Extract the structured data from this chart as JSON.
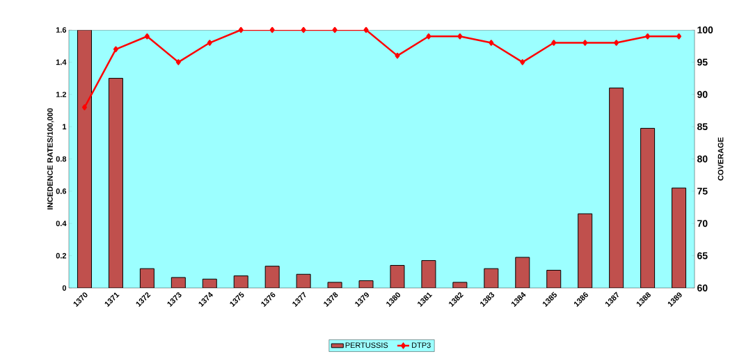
{
  "chart_data": {
    "type": "bar",
    "ylabel": "INCEDENCE RATES/100,000",
    "y2label": "COVERAGE",
    "categories": [
      "1370",
      "1371",
      "1372",
      "1373",
      "1374",
      "1375",
      "1376",
      "1377",
      "1378",
      "1379",
      "1380",
      "1381",
      "1382",
      "1383",
      "1384",
      "1385",
      "1386",
      "1387",
      "1388",
      "1389"
    ],
    "series": [
      {
        "name": "PERTUSSIS",
        "color": "#c0504d",
        "values": [
          1.6,
          1.3,
          0.12,
          0.065,
          0.055,
          0.075,
          0.135,
          0.085,
          0.035,
          0.045,
          0.14,
          0.17,
          0.035,
          0.12,
          0.19,
          0.11,
          0.46,
          1.24,
          0.99,
          0.62
        ]
      },
      {
        "name": "DTP3",
        "type": "line",
        "axis": "y2",
        "color": "#ff0000",
        "marker": "diamond",
        "values": [
          88,
          97,
          99,
          95,
          98,
          100,
          100,
          100,
          100,
          100,
          96,
          99,
          99,
          98,
          95,
          98,
          98,
          98,
          99,
          99
        ]
      }
    ],
    "ylim": [
      0,
      1.6
    ],
    "yticks": [
      0,
      0.2,
      0.4,
      0.6,
      0.8,
      1,
      1.2,
      1.4,
      1.6
    ],
    "y2lim": [
      60,
      100
    ],
    "y2ticks": [
      60,
      65,
      70,
      75,
      80,
      85,
      90,
      95,
      100
    ],
    "legend": "bottom",
    "grid": false
  }
}
